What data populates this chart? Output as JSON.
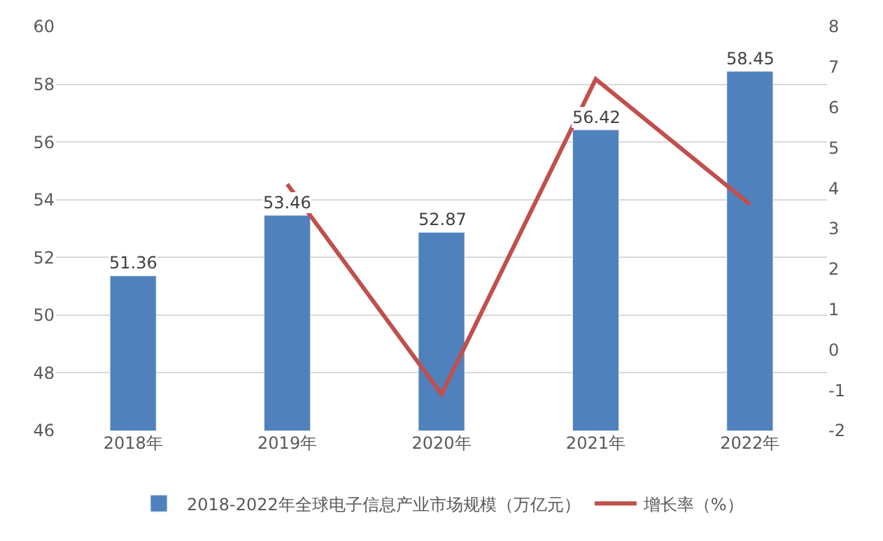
{
  "chart_data": {
    "type": "bar",
    "categories": [
      "2018年",
      "2019年",
      "2020年",
      "2021年",
      "2022年"
    ],
    "series": [
      {
        "name": "2018-2022年全球电子信息产业市场规模（万亿元）",
        "color": "#4f81bd",
        "values": [
          51.36,
          53.46,
          52.87,
          56.42,
          58.45
        ],
        "data_labels": true
      },
      {
        "name": "增长率（%）",
        "color": "#c0504d",
        "type": "line",
        "axis": "y2",
        "marker": "none",
        "line_style": "solid",
        "values": [
          null,
          4.1,
          -1.1,
          6.7,
          3.6
        ]
      }
    ],
    "ylim": [
      46,
      60
    ],
    "yticks": [
      46,
      48,
      50,
      52,
      54,
      56,
      58,
      60
    ],
    "y2lim": [
      -2,
      8
    ],
    "y2ticks": [
      -2,
      -1,
      0,
      1,
      2,
      3,
      4,
      5,
      6,
      7,
      8
    ],
    "grid": "y",
    "legend": "bottom"
  }
}
